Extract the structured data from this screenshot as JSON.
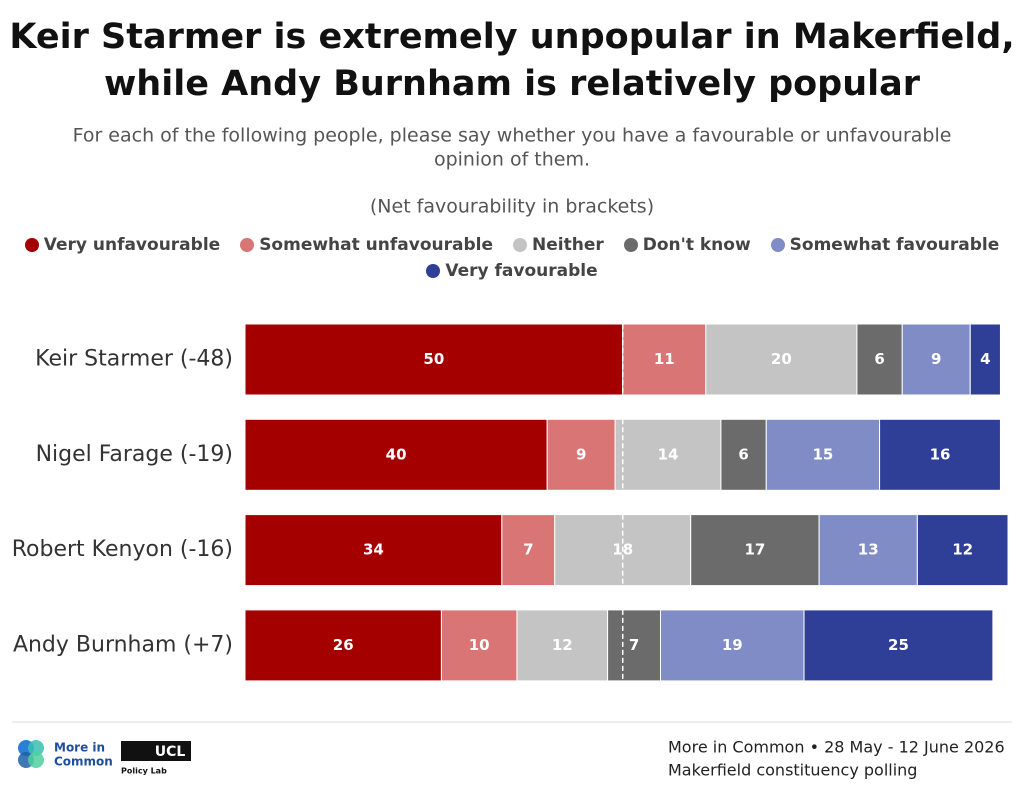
{
  "chart_data": {
    "type": "stacked-bar-horizontal",
    "title": [
      "Keir Starmer is extremely unpopular in Makerfield,",
      "while Andy Burnham is relatively popular"
    ],
    "subtitle": [
      "For each of the following people, please say whether you have a favourable or unfavourable",
      "opinion of them."
    ],
    "note": "(Net favourability in brackets)",
    "categories": [
      "Keir Starmer (-48)",
      "Nigel Farage (-19)",
      "Robert Kenyon (-16)",
      "Andy Burnham (+7)"
    ],
    "series": [
      {
        "name": "Very unfavourable",
        "color": "#a50000",
        "values": [
          50,
          40,
          34,
          26
        ]
      },
      {
        "name": "Somewhat unfavourable",
        "color": "#d97575",
        "values": [
          11,
          9,
          7,
          10
        ]
      },
      {
        "name": "Neither",
        "color": "#c4c4c4",
        "values": [
          20,
          14,
          18,
          12
        ]
      },
      {
        "name": "Don't know",
        "color": "#6b6b6b",
        "values": [
          6,
          6,
          17,
          7
        ]
      },
      {
        "name": "Somewhat favourable",
        "color": "#7f8cc6",
        "values": [
          9,
          15,
          13,
          19
        ]
      },
      {
        "name": "Very favourable",
        "color": "#2f3e96",
        "values": [
          4,
          16,
          12,
          25
        ]
      }
    ],
    "xlim": [
      0,
      101
    ],
    "reference_line": 50
  },
  "footer": {
    "source": "More in Common • 28 May - 12 June 2026",
    "description": "Makerfield constituency polling"
  },
  "logos": {
    "mic": [
      "More in",
      "Common"
    ],
    "ucl": "UCL",
    "policy_lab": "Policy Lab"
  }
}
